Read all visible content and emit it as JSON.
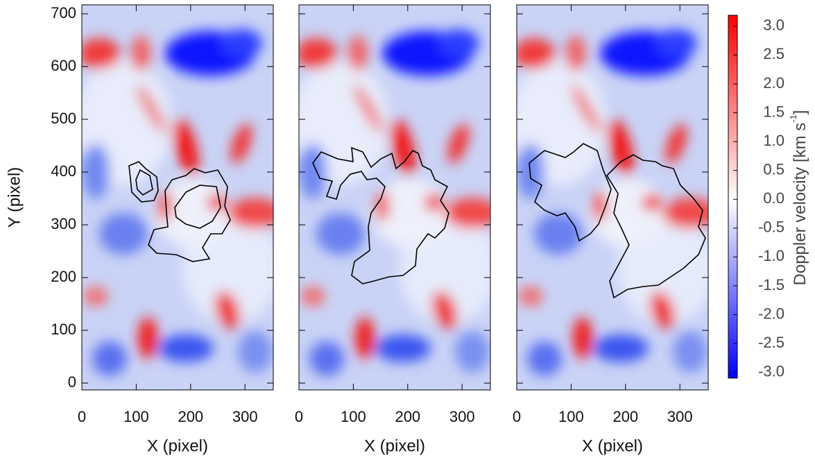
{
  "chart_data": [
    {
      "type": "heatmap",
      "xlabel": "X (pixel)",
      "ylabel": "Y (pixel)",
      "xlim": [
        0,
        352
      ],
      "ylim": [
        -13,
        717
      ],
      "xticks": [
        0,
        100,
        200,
        300
      ],
      "yticks": [
        0,
        100,
        200,
        300,
        400,
        500,
        600,
        700
      ],
      "show_yticklabels": true
    },
    {
      "type": "heatmap",
      "xlabel": "X (pixel)",
      "xlim": [
        0,
        352
      ],
      "ylim": [
        -13,
        717
      ],
      "xticks": [
        0,
        100,
        200,
        300
      ],
      "yticks": [
        0,
        100,
        200,
        300,
        400,
        500,
        600,
        700
      ],
      "show_yticklabels": false
    },
    {
      "type": "heatmap",
      "xlabel": "X (pixel)",
      "xlim": [
        0,
        352
      ],
      "ylim": [
        -13,
        717
      ],
      "xticks": [
        0,
        100,
        200,
        300
      ],
      "yticks": [
        0,
        100,
        200,
        300,
        400,
        500,
        600,
        700
      ],
      "show_yticklabels": false
    },
    {
      "type": "colorbar",
      "label": "Doppler velocity [km s",
      "label_sup": "-1",
      "label_end": "]",
      "lim": [
        -3.1,
        3.19
      ],
      "colors": [
        "#0000ff",
        "#ffffff",
        "#ff0000"
      ],
      "ticks": [
        {
          "value": 3.0,
          "label": "3.0"
        },
        {
          "value": 2.5,
          "label": "2.5"
        },
        {
          "value": 2.0,
          "label": "2.0"
        },
        {
          "value": 1.5,
          "label": "1.5"
        },
        {
          "value": 1.0,
          "label": "1.0"
        },
        {
          "value": 0.5,
          "label": "0.5"
        },
        {
          "value": 0.0,
          "label": "0.0"
        },
        {
          "value": -0.5,
          "label": "-0.5"
        },
        {
          "value": -1.0,
          "label": "-1.0"
        },
        {
          "value": -1.5,
          "label": "-1.5"
        },
        {
          "value": -2.0,
          "label": "-2.0"
        },
        {
          "value": -2.5,
          "label": "-2.5"
        },
        {
          "value": -3.0,
          "label": "-3.0"
        }
      ]
    }
  ]
}
